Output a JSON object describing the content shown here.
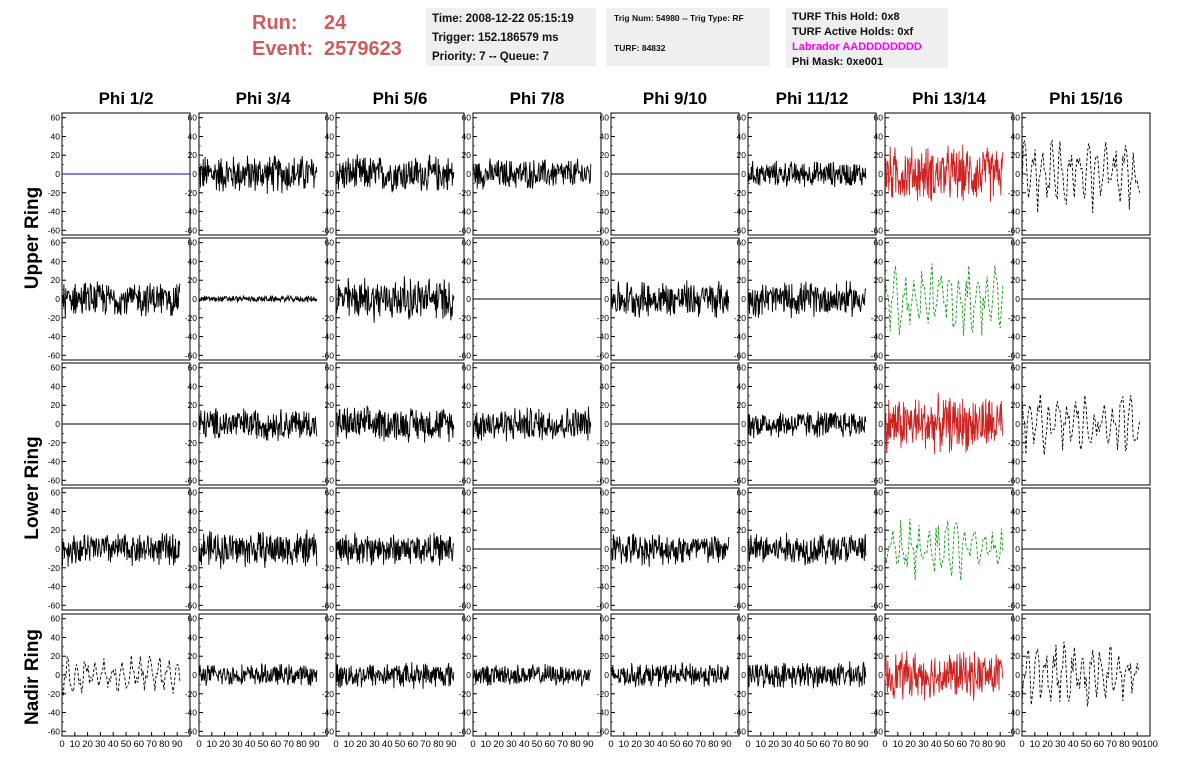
{
  "header": {
    "run_label": "Run:",
    "run_value": "24",
    "event_label": "Event:",
    "event_value": "2579623",
    "time": "Time: 2008-12-22 05:15:19",
    "trigger": "Trigger: 152.186579 ms",
    "priority": "Priority: 7 -- Queue: 7",
    "trig_num": "Trig Num: 54980 -- Trig Type: RF",
    "turf": "TURF: 84832",
    "turf_this_hold": "TURF This Hold: 0x8",
    "turf_active_holds": "TURF Active Holds: 0xf",
    "labrador": "Labrador AADDDDDDDD",
    "phi_mask": "Phi Mask: 0xe001",
    "labrador_color": "#ff00ff",
    "run_color": "#cd5c5c"
  },
  "chart_data": {
    "type": "line",
    "layout": "grid",
    "columns": [
      "Phi 1/2",
      "Phi 3/4",
      "Phi 5/6",
      "Phi 7/8",
      "Phi 9/10",
      "Phi 11/12",
      "Phi 13/14",
      "Phi 15/16"
    ],
    "rows": [
      "Upper Ring",
      "Upper Ring",
      "Lower Ring",
      "Lower Ring",
      "Nadir Ring"
    ],
    "row_labels": [
      "Upper Ring",
      "Lower Ring",
      "Nadir Ring"
    ],
    "xlim": [
      0,
      100
    ],
    "ylim": [
      -65,
      65
    ],
    "yticks": [
      -60,
      -40,
      -20,
      0,
      20,
      40,
      60
    ],
    "xticks": [
      0,
      10,
      20,
      30,
      40,
      50,
      60,
      70,
      80,
      90,
      100
    ],
    "colors": {
      "normal": "#000000",
      "flat_blue": "#0000cc",
      "red": "#cc2222",
      "green": "#119911"
    },
    "panels": [
      [
        {
          "style": "flat",
          "color": "flat_blue"
        },
        {
          "style": "solid",
          "color": "normal",
          "amplitude": 18
        },
        {
          "style": "solid",
          "color": "normal",
          "amplitude": 17
        },
        {
          "style": "solid",
          "color": "normal",
          "amplitude": 14
        },
        {
          "style": "flat",
          "color": "normal"
        },
        {
          "style": "solid",
          "color": "normal",
          "amplitude": 12
        },
        {
          "style": "solid",
          "color": "red",
          "amplitude": 26
        },
        {
          "style": "dashed",
          "color": "normal",
          "amplitude": 30
        }
      ],
      [
        {
          "style": "solid",
          "color": "normal",
          "amplitude": 16
        },
        {
          "style": "solid",
          "color": "normal",
          "amplitude": 3
        },
        {
          "style": "solid",
          "color": "normal",
          "amplitude": 20
        },
        {
          "style": "flat",
          "color": "normal"
        },
        {
          "style": "solid",
          "color": "normal",
          "amplitude": 17
        },
        {
          "style": "solid",
          "color": "normal",
          "amplitude": 16
        },
        {
          "style": "dashed",
          "color": "green",
          "amplitude": 28
        },
        {
          "style": "flat",
          "color": "normal"
        }
      ],
      [
        {
          "style": "flat",
          "color": "normal"
        },
        {
          "style": "solid",
          "color": "normal",
          "amplitude": 15
        },
        {
          "style": "solid",
          "color": "normal",
          "amplitude": 16
        },
        {
          "style": "solid",
          "color": "normal",
          "amplitude": 16
        },
        {
          "style": "flat",
          "color": "normal"
        },
        {
          "style": "solid",
          "color": "normal",
          "amplitude": 13
        },
        {
          "style": "solid",
          "color": "red",
          "amplitude": 26
        },
        {
          "style": "dashed",
          "color": "normal",
          "amplitude": 24
        }
      ],
      [
        {
          "style": "solid",
          "color": "normal",
          "amplitude": 15
        },
        {
          "style": "solid",
          "color": "normal",
          "amplitude": 17
        },
        {
          "style": "solid",
          "color": "normal",
          "amplitude": 15
        },
        {
          "style": "flat",
          "color": "normal"
        },
        {
          "style": "solid",
          "color": "normal",
          "amplitude": 15
        },
        {
          "style": "solid",
          "color": "normal",
          "amplitude": 15
        },
        {
          "style": "dashed",
          "color": "green",
          "amplitude": 24
        },
        {
          "style": "flat",
          "color": "normal"
        }
      ],
      [
        {
          "style": "dashed",
          "color": "normal",
          "amplitude": 16
        },
        {
          "style": "solid",
          "color": "normal",
          "amplitude": 10
        },
        {
          "style": "solid",
          "color": "normal",
          "amplitude": 12
        },
        {
          "style": "solid",
          "color": "normal",
          "amplitude": 10
        },
        {
          "style": "solid",
          "color": "normal",
          "amplitude": 11
        },
        {
          "style": "solid",
          "color": "normal",
          "amplitude": 12
        },
        {
          "style": "solid",
          "color": "red",
          "amplitude": 22
        },
        {
          "style": "dashed",
          "color": "normal",
          "amplitude": 26
        }
      ]
    ]
  }
}
